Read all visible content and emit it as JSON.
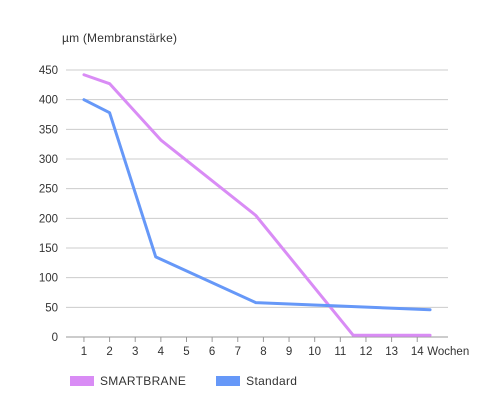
{
  "chart_data": {
    "type": "line",
    "ylabel": "µm (Membranstärke)",
    "xlabel": "Wochen",
    "x_ticks": [
      "1",
      "2",
      "3",
      "4",
      "5",
      "6",
      "7",
      "8",
      "9",
      "10",
      "11",
      "12",
      "13",
      "14"
    ],
    "y_ticks": [
      "0",
      "50",
      "100",
      "150",
      "200",
      "250",
      "300",
      "350",
      "400",
      "450"
    ],
    "ylim": [
      0,
      450
    ],
    "xlim": [
      0.3,
      15.2
    ],
    "grid": "horizontal",
    "legend_position": "bottom-left",
    "series": [
      {
        "name": "SMARTBRANE",
        "color": "#d98cf5",
        "x": [
          1,
          2,
          4,
          7.7,
          11.5,
          14.5
        ],
        "y": [
          442,
          427,
          332,
          205,
          3,
          3
        ]
      },
      {
        "name": "Standard",
        "color": "#6698f8",
        "x": [
          1,
          2,
          3.8,
          7.7,
          14.5
        ],
        "y": [
          400,
          378,
          135,
          58,
          46
        ]
      }
    ]
  }
}
